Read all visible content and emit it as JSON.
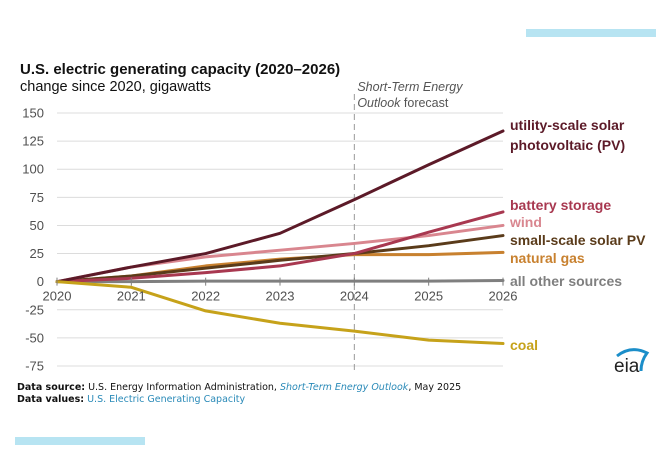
{
  "chart_data": {
    "type": "line",
    "title": "U.S. electric generating capacity (2020–2026)",
    "subtitle": "change since 2020, gigawatts",
    "xlabel": "",
    "ylabel": "gigawatts",
    "x": [
      2020,
      2021,
      2022,
      2023,
      2024,
      2025,
      2026
    ],
    "x_tick_labels": [
      "2020",
      "2021",
      "2022",
      "2023",
      "2024",
      "2025",
      "2026"
    ],
    "ylim": [
      -75,
      150
    ],
    "y_ticks": [
      150,
      125,
      100,
      75,
      50,
      25,
      0,
      -25,
      -50,
      -75
    ],
    "y_tick_labels": [
      "150",
      "125",
      "100",
      "75",
      "50",
      "25",
      "0",
      "-25",
      "-50",
      "-75"
    ],
    "grid": true,
    "legend": "right (inline labels at line ends)",
    "forecast_marker": {
      "x": 2024,
      "label_line1": "Short-Term Energy",
      "label_line2_italic": "Outlook",
      "label_line2_rest": " forecast"
    },
    "series": [
      {
        "name": "all other sources",
        "label_lines": [
          "all other sources"
        ],
        "color": "#7f7f7f",
        "values": [
          0,
          0,
          0.5,
          0.5,
          0.5,
          0.5,
          1
        ]
      },
      {
        "name": "natural gas",
        "label_lines": [
          "natural gas"
        ],
        "color": "#c8812f",
        "values": [
          0,
          5,
          14,
          20,
          24,
          24,
          26
        ]
      },
      {
        "name": "small-scale solar PV",
        "label_lines": [
          "small-scale solar PV"
        ],
        "color": "#5a3b1a",
        "values": [
          0,
          5,
          12,
          19,
          25,
          32,
          41
        ]
      },
      {
        "name": "wind",
        "label_lines": [
          "wind"
        ],
        "color": "#d9868f",
        "values": [
          0,
          13,
          22,
          28,
          34,
          41,
          50
        ]
      },
      {
        "name": "battery storage",
        "label_lines": [
          "battery storage"
        ],
        "color": "#a83850",
        "values": [
          0,
          3,
          8,
          14,
          25,
          44,
          62
        ]
      },
      {
        "name": "utility-scale solar photovoltaic (PV)",
        "label_lines": [
          "utility-scale solar",
          "photovoltaic (PV)"
        ],
        "color": "#5c1a28",
        "values": [
          0,
          13,
          25,
          43,
          73,
          104,
          134
        ]
      },
      {
        "name": "coal",
        "label_lines": [
          "coal"
        ],
        "color": "#c6a21a",
        "values": [
          0,
          -5,
          -26,
          -37,
          -44,
          -52,
          -55
        ]
      }
    ]
  },
  "footer": {
    "source_label": "Data source:",
    "source_text": " U.S. Energy Information Administration, ",
    "source_link": "Short-Term Energy Outlook",
    "source_tail": ", May 2025",
    "values_label": "Data values:",
    "values_link": " U.S. Electric Generating Capacity"
  },
  "logo": {
    "text": "eia",
    "arc_color": "#1b8ec9",
    "text_color": "#222"
  }
}
